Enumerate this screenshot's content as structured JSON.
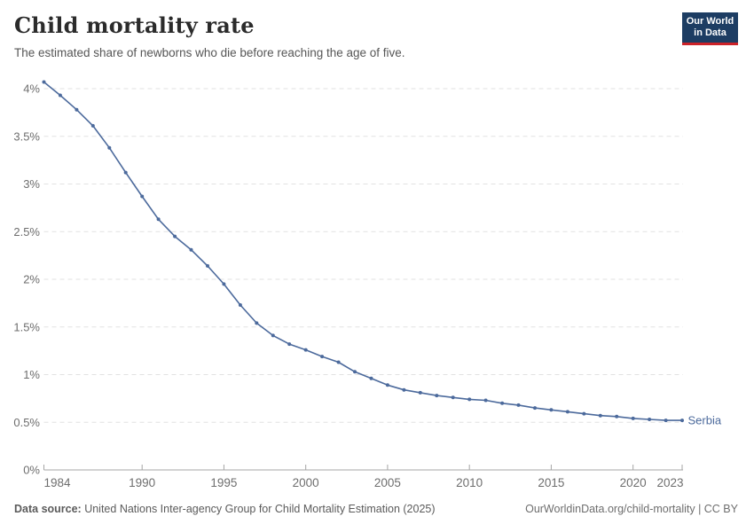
{
  "header": {
    "title": "Child mortality rate",
    "subtitle": "The estimated share of newborns who die before reaching the age of five.",
    "logo": {
      "line1": "Our World",
      "line2": "in Data"
    }
  },
  "footer": {
    "source_label": "Data source:",
    "source_text": " United Nations Inter-agency Group for Child Mortality Estimation (2025)",
    "link_text": "OurWorldinData.org/child-mortality | CC BY"
  },
  "colors": {
    "series_blue": "#4C6A9C",
    "grid_dashed": "#e2e2e2",
    "axis_line": "#a5a5a5",
    "tick_label": "#6e6e6e",
    "logo_navy": "#1d3d63",
    "logo_red": "#cc2228"
  },
  "chart_data": {
    "type": "line",
    "title": "Child mortality rate",
    "xlabel": "",
    "ylabel": "",
    "xlim": [
      1984,
      2023
    ],
    "ylim": [
      0,
      4.1
    ],
    "x_ticks": [
      1984,
      1990,
      1995,
      2000,
      2005,
      2010,
      2015,
      2020,
      2023
    ],
    "y_ticks": [
      0,
      0.5,
      1,
      1.5,
      2,
      2.5,
      3,
      3.5,
      4
    ],
    "y_tick_suffix": "%",
    "grid": "horizontal-dashed",
    "legend": "end-of-line-label",
    "series": [
      {
        "name": "Serbia",
        "color": "#4C6A9C",
        "x": [
          1984,
          1985,
          1986,
          1987,
          1988,
          1989,
          1990,
          1991,
          1992,
          1993,
          1994,
          1995,
          1996,
          1997,
          1998,
          1999,
          2000,
          2001,
          2002,
          2003,
          2004,
          2005,
          2006,
          2007,
          2008,
          2009,
          2010,
          2011,
          2012,
          2013,
          2014,
          2015,
          2016,
          2017,
          2018,
          2019,
          2020,
          2021,
          2022,
          2023
        ],
        "values": [
          4.07,
          3.93,
          3.78,
          3.61,
          3.38,
          3.12,
          2.87,
          2.63,
          2.45,
          2.31,
          2.14,
          1.95,
          1.73,
          1.54,
          1.41,
          1.32,
          1.26,
          1.19,
          1.13,
          1.03,
          0.96,
          0.89,
          0.84,
          0.81,
          0.78,
          0.76,
          0.74,
          0.73,
          0.7,
          0.68,
          0.65,
          0.63,
          0.61,
          0.59,
          0.57,
          0.56,
          0.54,
          0.53,
          0.52,
          0.52
        ]
      }
    ]
  }
}
